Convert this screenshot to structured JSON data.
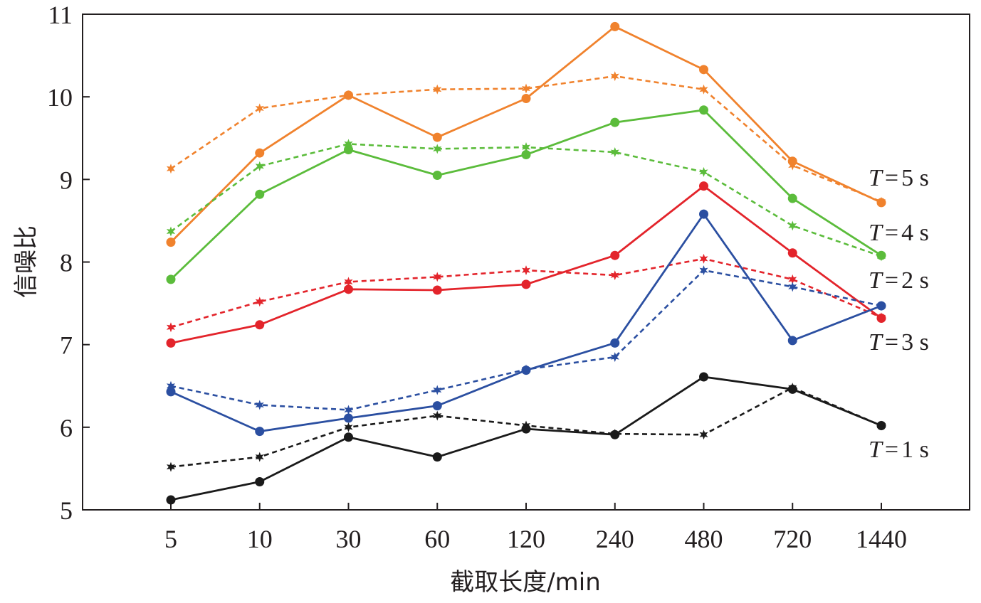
{
  "chart_data": {
    "type": "line",
    "title": "",
    "xlabel": "截取长度/min",
    "ylabel": "信噪比",
    "categories": [
      "5",
      "10",
      "30",
      "60",
      "120",
      "240",
      "480",
      "720",
      "1440"
    ],
    "ylim": [
      5,
      11
    ],
    "yticks": [
      5,
      6,
      7,
      8,
      9,
      10,
      11
    ],
    "grid": false,
    "series": [
      {
        "group": "T=5 s",
        "line": "solid",
        "marker": "circle",
        "color": "#f0822d",
        "values": [
          8.24,
          9.32,
          10.02,
          9.51,
          9.98,
          10.85,
          10.33,
          9.22,
          8.72
        ]
      },
      {
        "group": "T=5 s",
        "line": "dashed",
        "marker": "star",
        "color": "#f0822d",
        "values": [
          9.13,
          9.86,
          10.02,
          10.09,
          10.1,
          10.25,
          10.09,
          9.17,
          8.73
        ]
      },
      {
        "group": "T=4 s",
        "line": "solid",
        "marker": "circle",
        "color": "#5bbc3b",
        "values": [
          7.79,
          8.82,
          9.36,
          9.05,
          9.3,
          9.69,
          9.84,
          8.77,
          8.08
        ]
      },
      {
        "group": "T=4 s",
        "line": "dashed",
        "marker": "star",
        "color": "#5bbc3b",
        "values": [
          8.37,
          9.16,
          9.43,
          9.37,
          9.39,
          9.33,
          9.09,
          8.44,
          8.07
        ]
      },
      {
        "group": "T=2 s",
        "line": "solid",
        "marker": "circle",
        "color": "#e3242b",
        "values": [
          7.02,
          7.24,
          7.67,
          7.66,
          7.73,
          8.08,
          8.92,
          8.11,
          7.32
        ]
      },
      {
        "group": "T=2 s",
        "line": "dashed",
        "marker": "star",
        "color": "#e3242b",
        "values": [
          7.21,
          7.52,
          7.76,
          7.82,
          7.9,
          7.84,
          8.04,
          7.79,
          7.33
        ]
      },
      {
        "group": "T=3 s",
        "line": "solid",
        "marker": "circle",
        "color": "#2b4fa1",
        "values": [
          6.43,
          5.95,
          6.11,
          6.26,
          6.69,
          7.02,
          8.58,
          7.05,
          7.47
        ]
      },
      {
        "group": "T=3 s",
        "line": "dashed",
        "marker": "star",
        "color": "#2b4fa1",
        "values": [
          6.5,
          6.27,
          6.21,
          6.45,
          6.7,
          6.85,
          7.9,
          7.7,
          7.47
        ]
      },
      {
        "group": "T=1 s",
        "line": "solid",
        "marker": "circle",
        "color": "#1a1a1a",
        "values": [
          5.12,
          5.34,
          5.88,
          5.64,
          5.98,
          5.91,
          6.61,
          6.46,
          6.02
        ]
      },
      {
        "group": "T=1 s",
        "line": "dashed",
        "marker": "star",
        "color": "#1a1a1a",
        "values": [
          5.52,
          5.64,
          6.0,
          6.14,
          6.02,
          5.92,
          5.91,
          6.48,
          6.02
        ]
      }
    ],
    "annotations": [
      {
        "text": "T=5 s"
      },
      {
        "text": "T=4 s"
      },
      {
        "text": "T=2 s"
      },
      {
        "text": "T=3 s"
      },
      {
        "text": "T=1 s"
      }
    ]
  }
}
